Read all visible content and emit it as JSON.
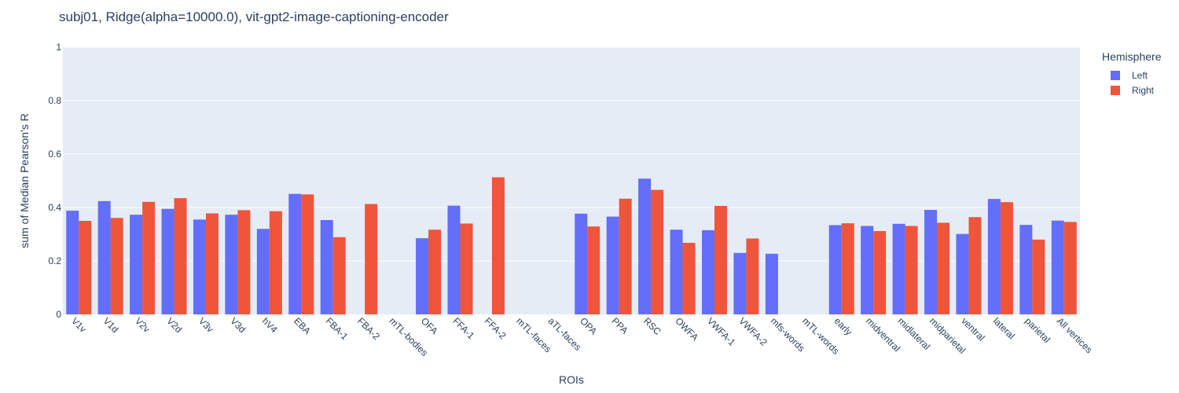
{
  "chart_data": {
    "type": "bar",
    "title": "subj01, Ridge(alpha=10000.0), vit-gpt2-image-captioning-encoder",
    "xlabel": "ROIs",
    "ylabel": "sum of Median Pearson's R",
    "ylim": [
      0,
      1
    ],
    "yticks": [
      0,
      0.2,
      0.4,
      0.6,
      0.8,
      1
    ],
    "ytick_labels": [
      "0",
      "0.2",
      "0.4",
      "0.6",
      "0.8",
      "1"
    ],
    "grid": true,
    "legend_title": "Hemisphere",
    "legend_position": "top-right",
    "categories": [
      "V1v",
      "V1d",
      "V2v",
      "V2d",
      "V3v",
      "V3d",
      "hV4",
      "EBA",
      "FBA-1",
      "FBA-2",
      "mTL-bodies",
      "OFA",
      "FFA-1",
      "FFA-2",
      "mTL-faces",
      "aTL-faces",
      "OPA",
      "PPA",
      "RSC",
      "OWFA",
      "VWFA-1",
      "VWFA-2",
      "mfs-words",
      "mTL-words",
      "early",
      "midventral",
      "midlateral",
      "midparietal",
      "ventral",
      "lateral",
      "parietal",
      "All vertices"
    ],
    "series": [
      {
        "name": "Left",
        "color": "#636efa",
        "values": [
          0.388,
          0.424,
          0.373,
          0.395,
          0.355,
          0.373,
          0.32,
          0.451,
          0.353,
          null,
          null,
          0.285,
          0.407,
          null,
          null,
          null,
          0.377,
          0.366,
          0.508,
          0.317,
          0.315,
          0.23,
          0.227,
          null,
          0.334,
          0.331,
          0.339,
          0.391,
          0.301,
          0.432,
          0.335,
          0.351
        ]
      },
      {
        "name": "Right",
        "color": "#ef553b",
        "values": [
          0.35,
          0.361,
          0.421,
          0.435,
          0.378,
          0.39,
          0.386,
          0.449,
          0.289,
          0.413,
          null,
          0.317,
          0.34,
          0.513,
          null,
          null,
          0.329,
          0.433,
          0.466,
          0.268,
          0.406,
          0.284,
          null,
          null,
          0.341,
          0.312,
          0.331,
          0.343,
          0.364,
          0.42,
          0.28,
          0.346
        ]
      }
    ]
  }
}
